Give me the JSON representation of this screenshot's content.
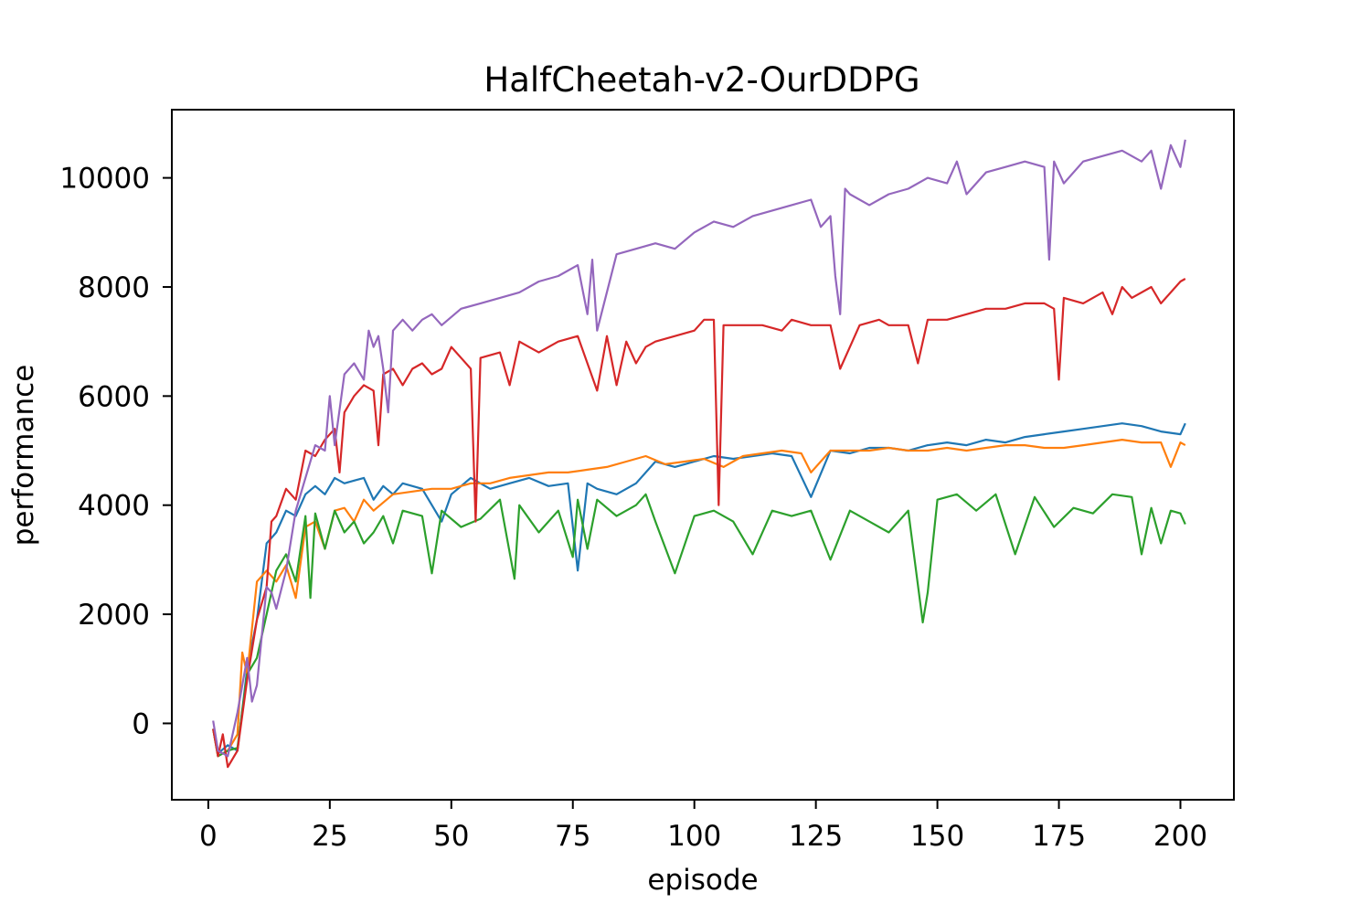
{
  "chart_data": {
    "type": "line",
    "title": "HalfCheetah-v2-OurDDPG",
    "xlabel": "episode",
    "ylabel": "performance",
    "xlim": [
      -7.5,
      211
    ],
    "ylim": [
      -1400,
      11250
    ],
    "xticks": [
      0,
      25,
      50,
      75,
      100,
      125,
      150,
      175,
      200
    ],
    "yticks": [
      0,
      2000,
      4000,
      6000,
      8000,
      10000
    ],
    "grid": false,
    "legend": "none",
    "series": [
      {
        "color": "#1f77b4",
        "x": [
          1,
          2,
          4,
          6,
          8,
          10,
          12,
          14,
          16,
          18,
          20,
          22,
          24,
          26,
          28,
          30,
          32,
          34,
          36,
          38,
          40,
          44,
          48,
          50,
          54,
          58,
          62,
          66,
          70,
          74,
          76,
          78,
          80,
          84,
          88,
          92,
          96,
          100,
          104,
          108,
          112,
          116,
          120,
          124,
          128,
          132,
          136,
          140,
          144,
          148,
          152,
          156,
          160,
          164,
          168,
          172,
          176,
          180,
          184,
          188,
          192,
          196,
          200,
          201
        ],
        "y": [
          -100,
          -550,
          -400,
          -500,
          1000,
          1900,
          3300,
          3500,
          3900,
          3800,
          4200,
          4350,
          4200,
          4500,
          4400,
          4450,
          4500,
          4100,
          4350,
          4200,
          4400,
          4300,
          3700,
          4200,
          4500,
          4300,
          4400,
          4500,
          4350,
          4400,
          2800,
          4400,
          4300,
          4200,
          4400,
          4800,
          4700,
          4800,
          4900,
          4850,
          4900,
          4950,
          4900,
          4150,
          5000,
          4950,
          5050,
          5050,
          5000,
          5100,
          5150,
          5100,
          5200,
          5150,
          5250,
          5300,
          5350,
          5400,
          5450,
          5500,
          5450,
          5350,
          5300,
          5500
        ]
      },
      {
        "color": "#ff7f0e",
        "x": [
          1,
          2,
          4,
          6,
          7,
          8,
          10,
          12,
          14,
          16,
          18,
          20,
          22,
          24,
          26,
          28,
          30,
          32,
          34,
          38,
          42,
          46,
          50,
          54,
          58,
          62,
          66,
          70,
          74,
          78,
          82,
          86,
          90,
          94,
          98,
          102,
          106,
          110,
          114,
          118,
          122,
          124,
          128,
          132,
          136,
          140,
          144,
          148,
          152,
          156,
          160,
          164,
          168,
          172,
          176,
          180,
          184,
          188,
          192,
          196,
          198,
          200,
          201
        ],
        "y": [
          -100,
          -600,
          -500,
          -200,
          1300,
          900,
          2600,
          2800,
          2600,
          2900,
          2300,
          3600,
          3700,
          3200,
          3900,
          3950,
          3700,
          4100,
          3900,
          4200,
          4250,
          4300,
          4300,
          4400,
          4400,
          4500,
          4550,
          4600,
          4600,
          4650,
          4700,
          4800,
          4900,
          4750,
          4800,
          4850,
          4700,
          4900,
          4950,
          5000,
          4950,
          4600,
          5000,
          5000,
          5000,
          5050,
          5000,
          5000,
          5050,
          5000,
          5050,
          5100,
          5100,
          5050,
          5050,
          5100,
          5150,
          5200,
          5150,
          5150,
          4700,
          5150,
          5100
        ]
      },
      {
        "color": "#2ca02c",
        "x": [
          1,
          2,
          4,
          6,
          8,
          10,
          12,
          14,
          16,
          18,
          20,
          21,
          22,
          24,
          26,
          28,
          30,
          32,
          34,
          36,
          38,
          40,
          44,
          46,
          48,
          52,
          56,
          60,
          63,
          64,
          68,
          72,
          75,
          76,
          78,
          80,
          84,
          88,
          90,
          92,
          96,
          100,
          104,
          108,
          112,
          116,
          120,
          124,
          128,
          132,
          136,
          140,
          144,
          147,
          148,
          150,
          154,
          158,
          162,
          166,
          170,
          174,
          178,
          182,
          186,
          190,
          192,
          194,
          196,
          198,
          200,
          201
        ],
        "y": [
          -100,
          -600,
          -500,
          -450,
          900,
          1200,
          2000,
          2800,
          3100,
          2600,
          3800,
          2300,
          3850,
          3200,
          3900,
          3500,
          3700,
          3300,
          3500,
          3800,
          3300,
          3900,
          3800,
          2750,
          3900,
          3600,
          3750,
          4100,
          2650,
          4000,
          3500,
          3900,
          3050,
          4100,
          3200,
          4100,
          3800,
          4000,
          4200,
          3700,
          2750,
          3800,
          3900,
          3700,
          3100,
          3900,
          3800,
          3900,
          3000,
          3900,
          3700,
          3500,
          3900,
          1850,
          2400,
          4100,
          4200,
          3900,
          4200,
          3100,
          4150,
          3600,
          3950,
          3850,
          4200,
          4150,
          3100,
          3950,
          3300,
          3900,
          3850,
          3650
        ]
      },
      {
        "color": "#d62728",
        "x": [
          1,
          2,
          3,
          4,
          6,
          8,
          10,
          12,
          13,
          14,
          16,
          18,
          20,
          22,
          24,
          26,
          27,
          28,
          30,
          32,
          34,
          35,
          36,
          38,
          40,
          42,
          44,
          46,
          48,
          50,
          54,
          55,
          56,
          60,
          62,
          64,
          68,
          72,
          76,
          80,
          82,
          84,
          86,
          88,
          90,
          92,
          96,
          100,
          102,
          104,
          105,
          106,
          110,
          114,
          118,
          120,
          124,
          128,
          130,
          134,
          138,
          140,
          144,
          146,
          148,
          152,
          156,
          160,
          164,
          168,
          172,
          174,
          175,
          176,
          180,
          184,
          186,
          188,
          190,
          194,
          196,
          200,
          201
        ],
        "y": [
          -100,
          -600,
          -200,
          -800,
          -500,
          800,
          1900,
          2500,
          3700,
          3800,
          4300,
          4100,
          5000,
          4900,
          5200,
          5400,
          4600,
          5700,
          6000,
          6200,
          6100,
          5100,
          6400,
          6500,
          6200,
          6500,
          6600,
          6400,
          6500,
          6900,
          6500,
          3700,
          6700,
          6800,
          6200,
          7000,
          6800,
          7000,
          7100,
          6100,
          7100,
          6200,
          7000,
          6600,
          6900,
          7000,
          7100,
          7200,
          7400,
          7400,
          4000,
          7300,
          7300,
          7300,
          7200,
          7400,
          7300,
          7300,
          6500,
          7300,
          7400,
          7300,
          7300,
          6600,
          7400,
          7400,
          7500,
          7600,
          7600,
          7700,
          7700,
          7600,
          6300,
          7800,
          7700,
          7900,
          7500,
          8000,
          7800,
          8000,
          7700,
          8100,
          8150
        ]
      },
      {
        "color": "#9467bd",
        "x": [
          1,
          2,
          4,
          6,
          8,
          9,
          10,
          12,
          13,
          14,
          16,
          18,
          20,
          22,
          24,
          25,
          26,
          28,
          30,
          32,
          33,
          34,
          35,
          36,
          37,
          38,
          40,
          42,
          44,
          46,
          48,
          52,
          56,
          60,
          64,
          68,
          72,
          76,
          78,
          79,
          80,
          84,
          88,
          92,
          96,
          100,
          104,
          108,
          112,
          116,
          120,
          124,
          126,
          128,
          129,
          130,
          131,
          132,
          136,
          140,
          144,
          148,
          152,
          154,
          156,
          160,
          164,
          168,
          172,
          173,
          174,
          176,
          180,
          184,
          188,
          192,
          194,
          196,
          198,
          200,
          201
        ],
        "y": [
          50,
          -500,
          -600,
          200,
          1200,
          400,
          700,
          2500,
          2400,
          2100,
          2800,
          3900,
          4500,
          5100,
          5000,
          6000,
          5100,
          6400,
          6600,
          6300,
          7200,
          6900,
          7100,
          6500,
          5700,
          7200,
          7400,
          7200,
          7400,
          7500,
          7300,
          7600,
          7700,
          7800,
          7900,
          8100,
          8200,
          8400,
          7500,
          8500,
          7200,
          8600,
          8700,
          8800,
          8700,
          9000,
          9200,
          9100,
          9300,
          9400,
          9500,
          9600,
          9100,
          9300,
          8200,
          7500,
          9800,
          9700,
          9500,
          9700,
          9800,
          10000,
          9900,
          10300,
          9700,
          10100,
          10200,
          10300,
          10200,
          8500,
          10300,
          9900,
          10300,
          10400,
          10500,
          10300,
          10500,
          9800,
          10600,
          10200,
          10700
        ]
      }
    ]
  }
}
